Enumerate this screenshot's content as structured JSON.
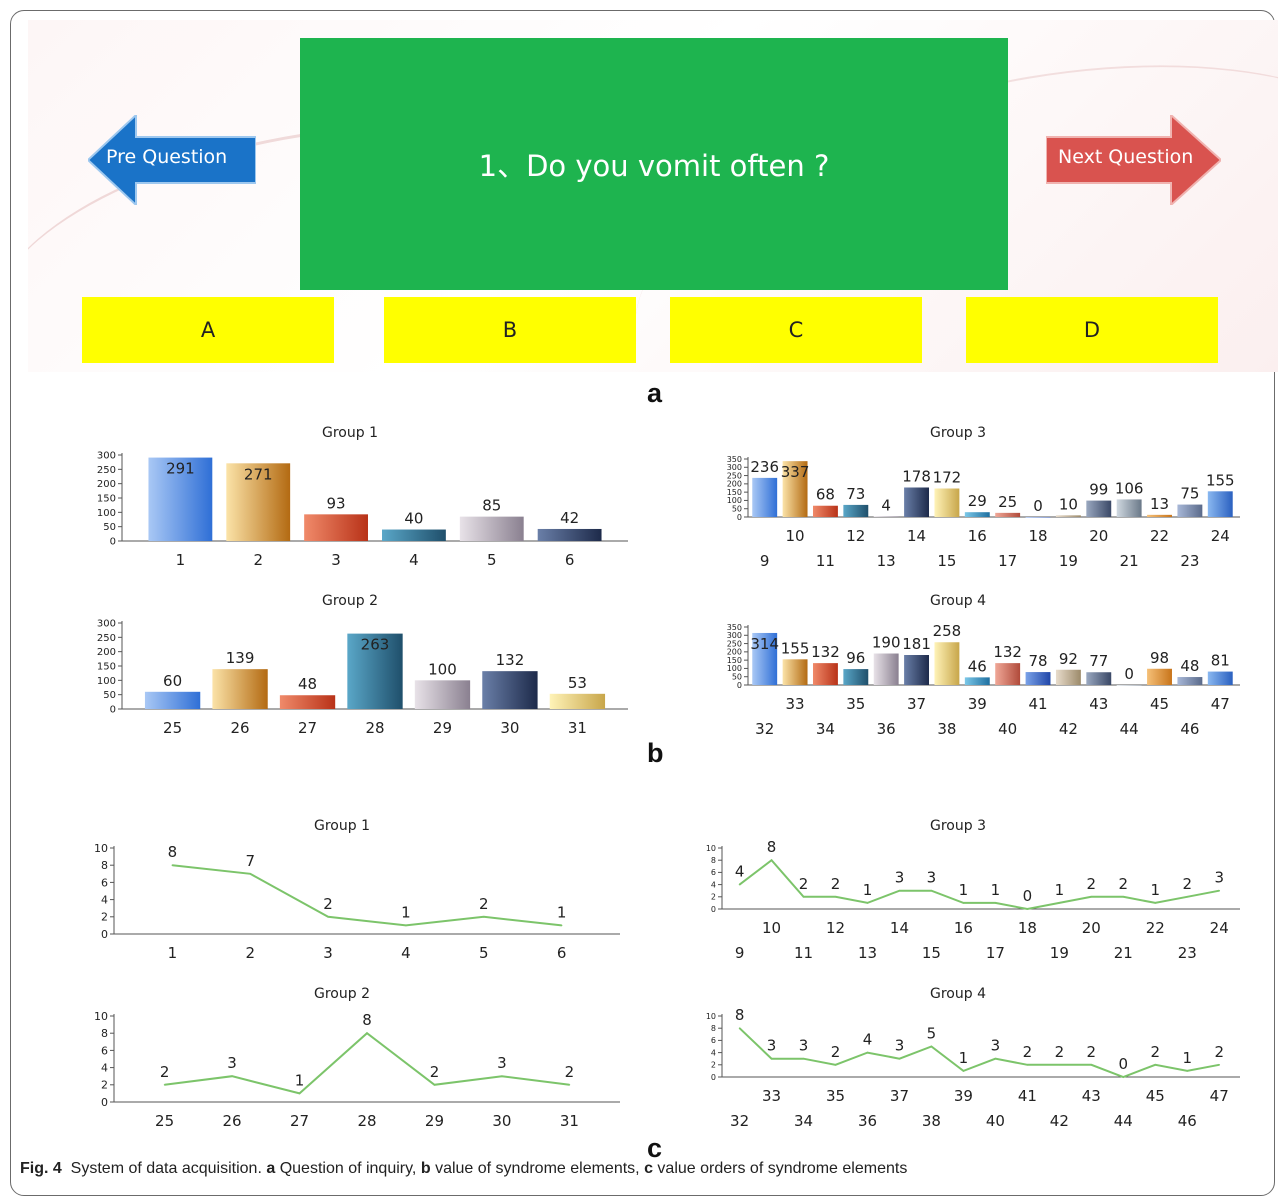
{
  "panel_a": {
    "question": "1、Do you vomit often ?",
    "prev_label": "Pre Question",
    "next_label": "Next Question",
    "options": [
      "A",
      "B",
      "C",
      "D"
    ],
    "colors": {
      "question_bg": "#1eb44f",
      "option_bg": "#ffff00",
      "prev_arrow": "#1a73c8",
      "next_arrow": "#d9534f"
    }
  },
  "panel_letters": {
    "a": "a",
    "b": "b",
    "c": "c"
  },
  "caption": {
    "prefix": "Fig. 4",
    "text_1": "System of data acquisition.",
    "a": "a",
    "text_a": "Question of inquiry,",
    "b": "b",
    "text_b": "value of syndrome elements,",
    "c": "c",
    "text_c": "value orders of syndrome elements"
  },
  "chart_data": [
    {
      "id": "b1",
      "type": "bar",
      "title": "Group 1",
      "categories": [
        "1",
        "2",
        "3",
        "4",
        "5",
        "6"
      ],
      "values": [
        291,
        271,
        93,
        40,
        85,
        42
      ],
      "yticks": [
        0,
        50,
        100,
        150,
        200,
        250,
        300
      ],
      "ylim": [
        0,
        300
      ],
      "xlabel_stagger": false
    },
    {
      "id": "b2",
      "type": "bar",
      "title": "Group 2",
      "categories": [
        "25",
        "26",
        "27",
        "28",
        "29",
        "30",
        "31"
      ],
      "values": [
        60,
        139,
        48,
        263,
        100,
        132,
        53
      ],
      "yticks": [
        0,
        50,
        100,
        150,
        200,
        250,
        300
      ],
      "ylim": [
        0,
        300
      ],
      "xlabel_stagger": false
    },
    {
      "id": "b3",
      "type": "bar",
      "title": "Group 3",
      "categories": [
        "9",
        "10",
        "11",
        "12",
        "13",
        "14",
        "15",
        "16",
        "17",
        "18",
        "19",
        "20",
        "21",
        "22",
        "23",
        "24"
      ],
      "values": [
        236,
        337,
        68,
        73,
        4,
        178,
        172,
        29,
        25,
        0,
        10,
        99,
        106,
        13,
        75,
        155
      ],
      "yticks": [
        0,
        50,
        100,
        150,
        200,
        250,
        300,
        350
      ],
      "ylim": [
        0,
        350
      ],
      "xlabel_stagger": true
    },
    {
      "id": "b4",
      "type": "bar",
      "title": "Group 4",
      "categories": [
        "32",
        "33",
        "34",
        "35",
        "36",
        "37",
        "38",
        "39",
        "40",
        "41",
        "42",
        "43",
        "44",
        "45",
        "46",
        "47"
      ],
      "values": [
        314,
        155,
        132,
        96,
        190,
        181,
        258,
        46,
        132,
        78,
        92,
        77,
        0,
        98,
        48,
        81
      ],
      "yticks": [
        0,
        50,
        100,
        150,
        200,
        250,
        300,
        350
      ],
      "ylim": [
        0,
        350
      ],
      "xlabel_stagger": true
    },
    {
      "id": "c1",
      "type": "line",
      "title": "Group 1",
      "categories": [
        "1",
        "2",
        "3",
        "4",
        "5",
        "6"
      ],
      "values": [
        8,
        7,
        2,
        1,
        2,
        1
      ],
      "yticks": [
        0,
        2,
        4,
        6,
        8,
        10
      ],
      "ylim": [
        0,
        10
      ],
      "xlabel_stagger": false,
      "line_color": "#7cc46a"
    },
    {
      "id": "c2",
      "type": "line",
      "title": "Group 2",
      "categories": [
        "25",
        "26",
        "27",
        "28",
        "29",
        "30",
        "31"
      ],
      "values": [
        2,
        3,
        1,
        8,
        2,
        3,
        2
      ],
      "yticks": [
        0,
        2,
        4,
        6,
        8,
        10
      ],
      "ylim": [
        0,
        10
      ],
      "xlabel_stagger": false,
      "line_color": "#7cc46a"
    },
    {
      "id": "c3",
      "type": "line",
      "title": "Group 3",
      "categories": [
        "9",
        "10",
        "11",
        "12",
        "13",
        "14",
        "15",
        "16",
        "17",
        "18",
        "19",
        "20",
        "21",
        "22",
        "23",
        "24"
      ],
      "values": [
        4,
        8,
        2,
        2,
        1,
        3,
        3,
        1,
        1,
        0,
        1,
        2,
        2,
        1,
        2,
        3
      ],
      "yticks": [
        0,
        2,
        4,
        6,
        8,
        10
      ],
      "ylim": [
        0,
        10
      ],
      "xlabel_stagger": true,
      "line_color": "#7cc46a"
    },
    {
      "id": "c4",
      "type": "line",
      "title": "Group 4",
      "categories": [
        "32",
        "33",
        "34",
        "35",
        "36",
        "37",
        "38",
        "39",
        "40",
        "41",
        "42",
        "43",
        "44",
        "45",
        "46",
        "47"
      ],
      "values": [
        8,
        3,
        3,
        2,
        4,
        3,
        5,
        1,
        3,
        2,
        2,
        2,
        0,
        2,
        1,
        2
      ],
      "yticks": [
        0,
        2,
        4,
        6,
        8,
        10
      ],
      "ylim": [
        0,
        10
      ],
      "xlabel_stagger": true,
      "line_color": "#7cc46a"
    }
  ]
}
